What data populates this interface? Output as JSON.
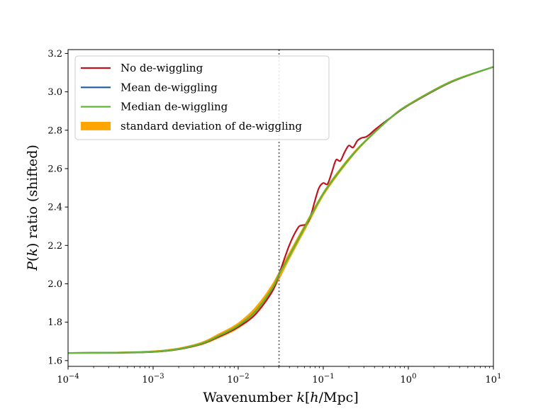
{
  "chart_data": {
    "type": "line",
    "title": "",
    "xlabel": "Wavenumber k[h/Mpc]",
    "ylabel": "P(k) ratio (shifted)",
    "xscale": "log",
    "xlim_exp": [
      -4,
      1
    ],
    "ylim": [
      1.57,
      3.22
    ],
    "x_ticks": [
      {
        "exp": -4,
        "base": "10",
        "sup": "−4"
      },
      {
        "exp": -3,
        "base": "10",
        "sup": "−3"
      },
      {
        "exp": -2,
        "base": "10",
        "sup": "−2"
      },
      {
        "exp": -1,
        "base": "10",
        "sup": "−1"
      },
      {
        "exp": 0,
        "base": "10",
        "sup": "0"
      },
      {
        "exp": 1,
        "base": "10",
        "sup": "1"
      }
    ],
    "y_ticks": [
      "1.6",
      "1.8",
      "2.0",
      "2.2",
      "2.4",
      "2.6",
      "2.8",
      "3.0",
      "3.2"
    ],
    "vline_log10_k": -1.52,
    "legend_position": "upper-left",
    "legend": [
      {
        "label": "No de-wiggling",
        "color": "#c1121f",
        "kind": "line"
      },
      {
        "label": "Mean de-wiggling",
        "color": "#1f5aa6",
        "kind": "line"
      },
      {
        "label": "Median de-wiggling",
        "color": "#5fb832",
        "kind": "line"
      },
      {
        "label": "standard deviation of de-wiggling",
        "color": "#ffa500",
        "kind": "band"
      }
    ],
    "series": [
      {
        "name": "standard deviation of de-wiggling",
        "color": "#ffa500",
        "x_log10": [
          -4,
          -3,
          -2.5,
          -2.2,
          -2.0,
          -1.8,
          -1.6,
          -1.4,
          -1.2,
          -1.0,
          -0.8,
          -0.6,
          -0.4,
          -0.2,
          0.0,
          0.5,
          1.0
        ],
        "lower": [
          1.64,
          1.645,
          1.675,
          1.725,
          1.77,
          1.84,
          1.96,
          2.13,
          2.295,
          2.46,
          2.585,
          2.695,
          2.785,
          2.865,
          2.93,
          3.05,
          3.13
        ],
        "upper": [
          1.64,
          1.65,
          1.685,
          1.745,
          1.795,
          1.875,
          1.995,
          2.16,
          2.32,
          2.475,
          2.6,
          2.705,
          2.79,
          2.87,
          2.935,
          3.055,
          3.13
        ]
      },
      {
        "name": "No de-wiggling",
        "color": "#c1121f",
        "x_log10": [
          -4,
          -3,
          -2.5,
          -2.2,
          -2.0,
          -1.8,
          -1.6,
          -1.52,
          -1.4,
          -1.3,
          -1.25,
          -1.2,
          -1.15,
          -1.1,
          -1.05,
          -1.0,
          -0.95,
          -0.9,
          -0.85,
          -0.8,
          -0.75,
          -0.7,
          -0.65,
          -0.6,
          -0.55,
          -0.5,
          -0.45,
          -0.4,
          -0.3,
          -0.2,
          0.0,
          0.5,
          1.0
        ],
        "y": [
          1.64,
          1.645,
          1.678,
          1.73,
          1.775,
          1.84,
          1.96,
          2.05,
          2.2,
          2.29,
          2.305,
          2.31,
          2.35,
          2.43,
          2.5,
          2.525,
          2.52,
          2.58,
          2.645,
          2.64,
          2.685,
          2.72,
          2.71,
          2.745,
          2.76,
          2.765,
          2.78,
          2.8,
          2.835,
          2.868,
          2.93,
          3.05,
          3.13
        ]
      },
      {
        "name": "Mean de-wiggling",
        "color": "#1f5aa6",
        "x_log10": [
          -4,
          -3,
          -2.5,
          -2.2,
          -2.0,
          -1.8,
          -1.6,
          -1.52,
          -1.4,
          -1.2,
          -1.0,
          -0.8,
          -0.6,
          -0.4,
          -0.2,
          0.0,
          0.5,
          1.0
        ],
        "y": [
          1.64,
          1.646,
          1.68,
          1.735,
          1.782,
          1.856,
          1.975,
          2.05,
          2.145,
          2.31,
          2.47,
          2.593,
          2.7,
          2.788,
          2.868,
          2.932,
          3.052,
          3.13
        ]
      },
      {
        "name": "Median de-wiggling",
        "color": "#5fb832",
        "x_log10": [
          -4,
          -3,
          -2.5,
          -2.2,
          -2.0,
          -1.8,
          -1.6,
          -1.52,
          -1.4,
          -1.2,
          -1.0,
          -0.8,
          -0.6,
          -0.4,
          -0.2,
          0.0,
          0.5,
          1.0
        ],
        "y": [
          1.64,
          1.646,
          1.68,
          1.735,
          1.782,
          1.856,
          1.975,
          2.05,
          2.145,
          2.31,
          2.47,
          2.593,
          2.7,
          2.788,
          2.868,
          2.932,
          3.052,
          3.13
        ]
      }
    ]
  }
}
